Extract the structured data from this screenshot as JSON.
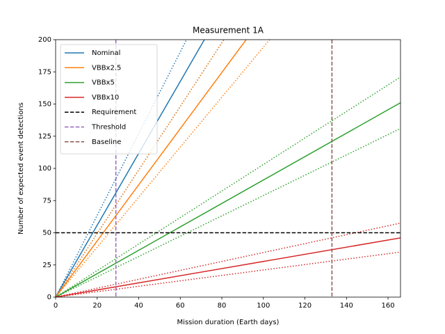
{
  "chart_data": {
    "type": "line",
    "title": "Measurement 1A",
    "xlabel": "Mission duration (Earth days)",
    "ylabel": "Number of expected event detections",
    "xlim": [
      0,
      166
    ],
    "ylim": [
      0,
      200
    ],
    "xticks": [
      0,
      20,
      40,
      60,
      80,
      100,
      120,
      140,
      160
    ],
    "yticks": [
      0,
      25,
      50,
      75,
      100,
      125,
      150,
      175,
      200
    ],
    "legend": "upper left",
    "series": [
      {
        "name": "Nominal",
        "color": "#1f77b4",
        "x": [
          0,
          71.6
        ],
        "values": [
          0,
          200
        ],
        "upper": {
          "x": [
            0,
            63
          ],
          "values": [
            0,
            200
          ]
        },
        "lower": {
          "x": [
            0,
            81
          ],
          "values": [
            0,
            200
          ]
        }
      },
      {
        "name": "VBBx2.5",
        "color": "#ff7f0e",
        "x": [
          0,
          91.7
        ],
        "values": [
          0,
          200
        ],
        "upper": {
          "x": [
            0,
            81
          ],
          "values": [
            0,
            200
          ]
        },
        "lower": {
          "x": [
            0,
            103
          ],
          "values": [
            0,
            200
          ]
        }
      },
      {
        "name": "VBBx5",
        "color": "#2ca02c",
        "x": [
          0,
          166
        ],
        "values": [
          0,
          151
        ],
        "upper": {
          "x": [
            0,
            166
          ],
          "values": [
            0,
            171
          ]
        },
        "lower": {
          "x": [
            0,
            166
          ],
          "values": [
            0,
            131
          ]
        }
      },
      {
        "name": "VBBx10",
        "color": "#d62728",
        "x": [
          0,
          166
        ],
        "values": [
          0,
          46
        ],
        "upper": {
          "x": [
            0,
            166
          ],
          "values": [
            0,
            57.5
          ]
        },
        "lower": {
          "x": [
            0,
            166
          ],
          "values": [
            0,
            35
          ]
        }
      }
    ],
    "hlines": [
      {
        "name": "Requirement",
        "value": 50,
        "color": "#000000"
      }
    ],
    "vlines": [
      {
        "name": "Threshold",
        "value": 29,
        "color": "#9467bd"
      },
      {
        "name": "Baseline",
        "value": 133,
        "color": "#8c564b"
      }
    ]
  }
}
